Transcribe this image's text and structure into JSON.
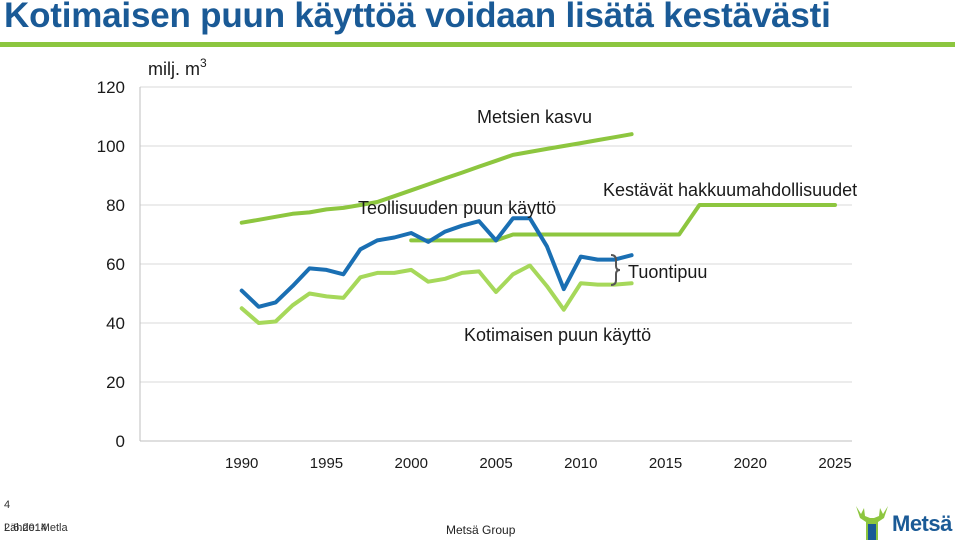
{
  "slide": {
    "title": "Kotimaisen puun käyttöä voidaan lisätä kestävästi",
    "footer_page": "4",
    "footer_date": "2.6.2014",
    "footer_source": "Lähde: Metla",
    "footer_center": "Metsä Group",
    "logo_text": "Metsä"
  },
  "colors": {
    "title": "#1a5a96",
    "rule": "#8cc63f",
    "blue": "#1a6fb3",
    "green": "#8dc63f",
    "light_green": "#a6d85a",
    "grid": "#d9d9d9"
  },
  "chart_data": {
    "type": "line",
    "title": "",
    "ylabel": "milj. m",
    "ylabel_superscript": "3",
    "xlim": [
      1984,
      2026
    ],
    "ylim": [
      0,
      120
    ],
    "x_ticks": [
      1990,
      1995,
      2000,
      2005,
      2010,
      2015,
      2020,
      2025
    ],
    "y_ticks": [
      0,
      20,
      40,
      60,
      80,
      100,
      120
    ],
    "grid": true,
    "annotations": {
      "metsien_kasvu": "Metsien kasvu",
      "teollisuuden": "Teollisuuden puun käyttö",
      "kestavat": "Kestävät hakkuumahdollisuudet",
      "tuontipuu": "Tuontipuu",
      "kotimaisen": "Kotimaisen puun käyttö"
    },
    "series": [
      {
        "key": "metsien_kasvu",
        "color": "#8dc63f",
        "x": [
          1990,
          1991,
          1992,
          1993,
          1994,
          1995,
          1996,
          1997,
          1998,
          1999,
          2000,
          2001,
          2002,
          2003,
          2004,
          2005,
          2006,
          2007,
          2008,
          2009,
          2010,
          2011,
          2012,
          2013
        ],
        "values": [
          74,
          75,
          76,
          77,
          77.5,
          78.5,
          79,
          80,
          81,
          83,
          85,
          87,
          89,
          91,
          93,
          95,
          97,
          98,
          99,
          100,
          101,
          102,
          103,
          104
        ]
      },
      {
        "key": "kestavat",
        "color": "#8dc63f",
        "x": [
          2000,
          2005,
          2006,
          2015.8,
          2017,
          2025
        ],
        "values": [
          68,
          68,
          70,
          70,
          80,
          80
        ]
      },
      {
        "key": "teollisuuden",
        "color": "#1a6fb3",
        "x": [
          1990,
          1991,
          1992,
          1993,
          1994,
          1995,
          1996,
          1997,
          1998,
          1999,
          2000,
          2001,
          2002,
          2003,
          2004,
          2005,
          2006,
          2007,
          2008,
          2009,
          2010,
          2011,
          2012,
          2013
        ],
        "values": [
          51,
          45.5,
          47,
          52.5,
          58.5,
          58,
          56.5,
          65,
          68,
          69,
          70.5,
          67.5,
          71,
          73,
          74.5,
          68,
          75.5,
          75.5,
          66,
          51.5,
          62.5,
          61.5,
          61.5,
          63
        ]
      },
      {
        "key": "kotimaisen",
        "color": "#a6d85a",
        "x": [
          1990,
          1991,
          1992,
          1993,
          1994,
          1995,
          1996,
          1997,
          1998,
          1999,
          2000,
          2001,
          2002,
          2003,
          2004,
          2005,
          2006,
          2007,
          2008,
          2009,
          2010,
          2011,
          2012,
          2013
        ],
        "values": [
          45,
          40,
          40.5,
          46,
          50,
          49,
          48.5,
          55.5,
          57,
          57,
          58,
          54,
          55,
          57,
          57.5,
          50.5,
          56.5,
          59.5,
          52.5,
          44.5,
          53.5,
          53,
          53,
          53.5
        ]
      }
    ]
  }
}
